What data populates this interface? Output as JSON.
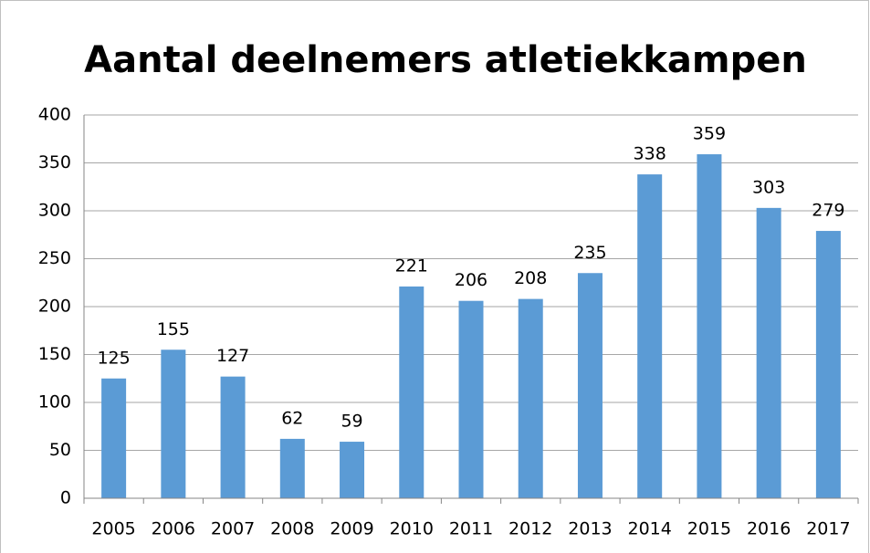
{
  "chart_data": {
    "type": "bar",
    "title": "Aantal deelnemers atletiekkampen",
    "categories": [
      "2005",
      "2006",
      "2007",
      "2008",
      "2009",
      "2010",
      "2011",
      "2012",
      "2013",
      "2014",
      "2015",
      "2016",
      "2017"
    ],
    "values": [
      125,
      155,
      127,
      62,
      59,
      221,
      206,
      208,
      235,
      338,
      359,
      303,
      279
    ],
    "color": "#5b9bd5",
    "ylim": [
      0,
      400
    ],
    "yticks": [
      0,
      50,
      100,
      150,
      200,
      250,
      300,
      350,
      400
    ],
    "grid": true
  }
}
